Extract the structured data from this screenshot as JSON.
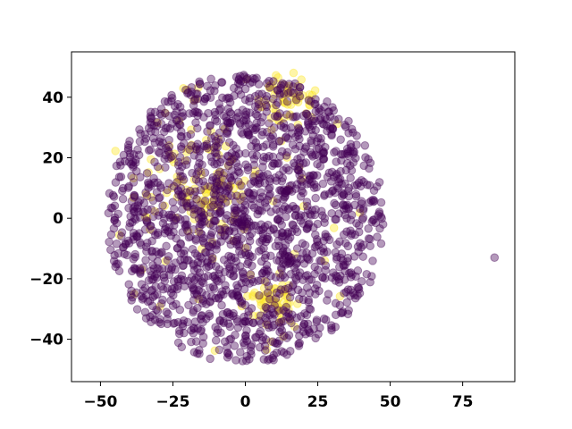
{
  "chart_data": {
    "type": "scatter",
    "title": "",
    "xlabel": "",
    "ylabel": "",
    "xlim": [
      -60,
      93
    ],
    "ylim": [
      -54,
      55
    ],
    "xticks": [
      -50,
      -25,
      0,
      25,
      50,
      75
    ],
    "yticks": [
      -40,
      -20,
      0,
      20,
      40
    ],
    "xtick_labels": [
      "−50",
      "−25",
      "0",
      "25",
      "50",
      "75"
    ],
    "ytick_labels": [
      "−40",
      "−20",
      "0",
      "20",
      "40"
    ],
    "grid": false,
    "legend": "none",
    "colors": {
      "class_0": "#440154",
      "class_1": "#fde725"
    },
    "marker_alpha": 0.4,
    "point_cloud": {
      "class_0_count": 1750,
      "class_1_count": 260,
      "center": [
        0,
        0
      ],
      "radius": 48
    },
    "outliers": [
      {
        "x": 86,
        "y": -13,
        "class": 0
      }
    ],
    "class_1_clusters": [
      {
        "x": -20,
        "y": 15,
        "spread": 9
      },
      {
        "x": -10,
        "y": 5,
        "spread": 6
      },
      {
        "x": 10,
        "y": -27,
        "spread": 4
      },
      {
        "x": 15,
        "y": 40,
        "spread": 5
      }
    ]
  }
}
